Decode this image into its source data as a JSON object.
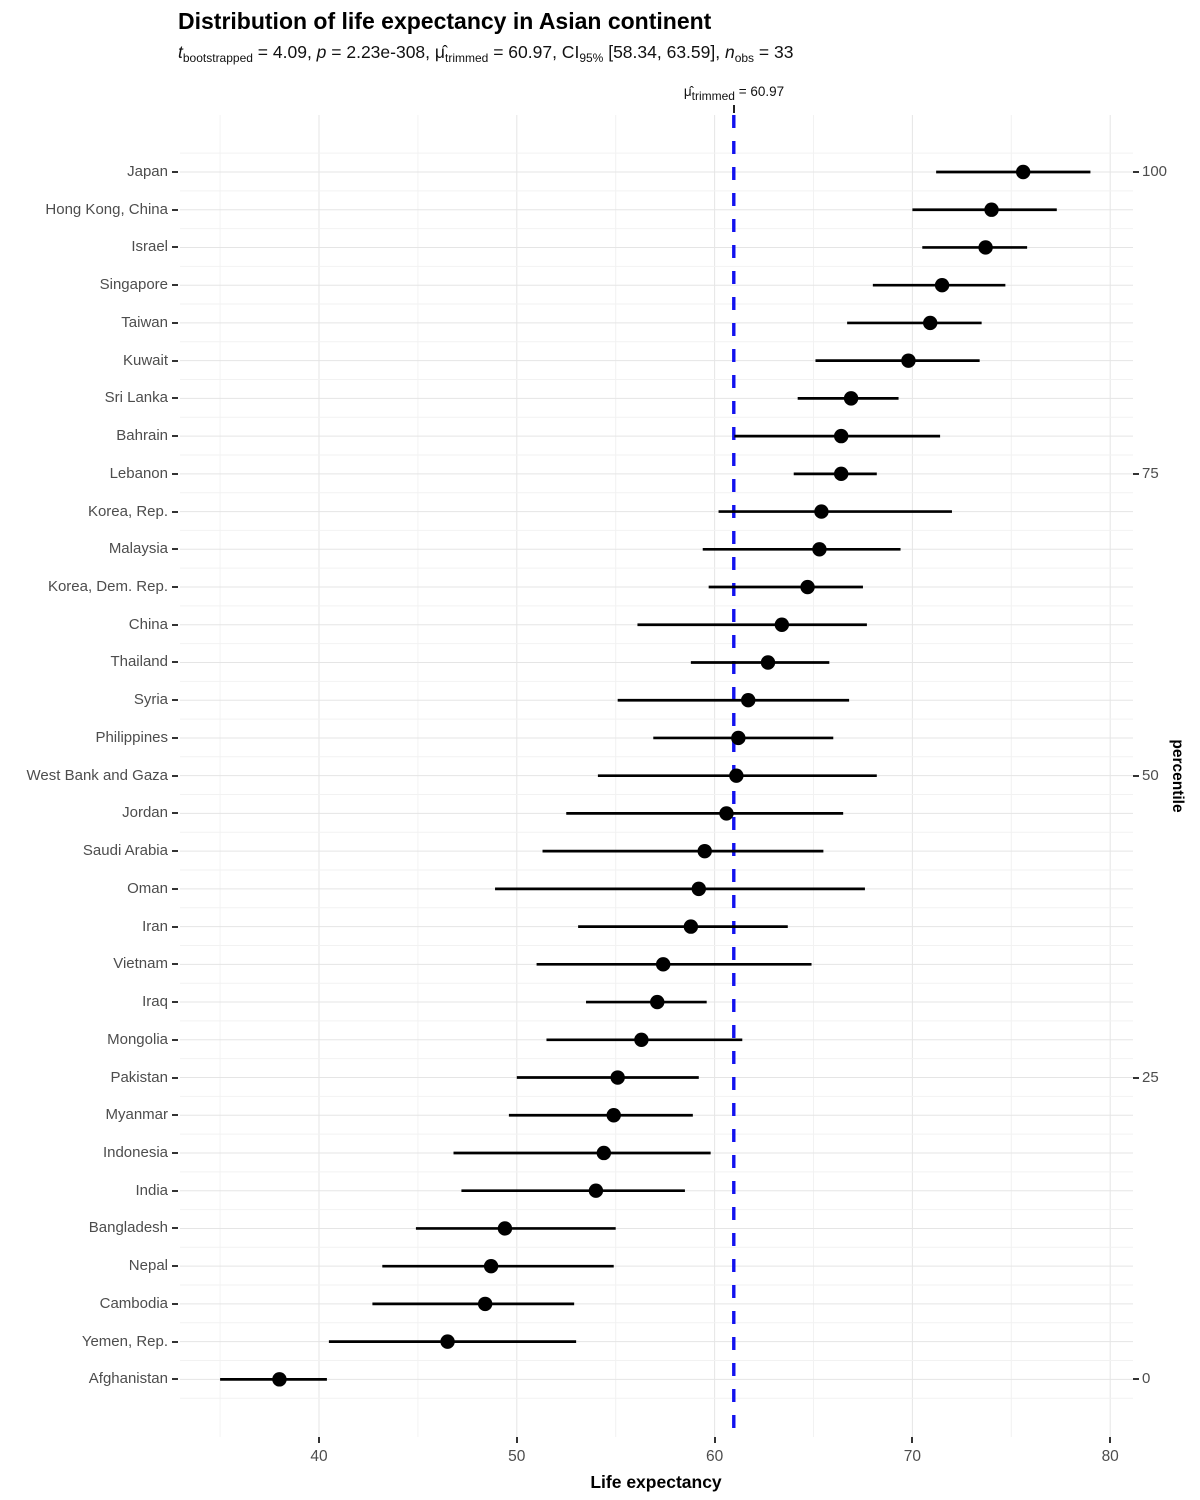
{
  "title": "Distribution of life expectancy in Asian continent",
  "subtitle_segments": [
    {
      "text": "t",
      "italic": true
    },
    {
      "text": "bootstrapped",
      "sub": true
    },
    {
      "text": " = 4.09, "
    },
    {
      "text": "p",
      "italic": true
    },
    {
      "text": " = 2.23e-308, "
    },
    {
      "text": "μ̂"
    },
    {
      "text": "trimmed",
      "sub": true
    },
    {
      "text": " = 60.97, CI"
    },
    {
      "text": "95%",
      "sub": true
    },
    {
      "text": " [58.34, 63.59], "
    },
    {
      "text": "n",
      "italic": true
    },
    {
      "text": "obs",
      "sub": true
    },
    {
      "text": " = 33"
    }
  ],
  "mu_label_segments": [
    {
      "text": "μ̂"
    },
    {
      "text": "trimmed",
      "sub": true
    },
    {
      "text": " = 60.97"
    }
  ],
  "axes": {
    "x_title": "Life expectancy",
    "y2_title": "percentile",
    "x_ticks": [
      40,
      50,
      60,
      70,
      80
    ],
    "y2_ticks": [
      {
        "label": "100",
        "row": 0
      },
      {
        "label": "75",
        "row": 8
      },
      {
        "label": "50",
        "row": 16
      },
      {
        "label": "25",
        "row": 24
      },
      {
        "label": "0",
        "row": 32
      }
    ]
  },
  "colors": {
    "reference_line": "#1212ee",
    "point": "#000000",
    "ci_line": "#000000",
    "grid_major": "#e5e5e5",
    "grid_minor": "#f2f2f2",
    "axis_text": "#4d4d4d"
  },
  "chart_data": {
    "type": "scatter",
    "subtype": "dot-plot-with-ci",
    "title": "Distribution of life expectancy in Asian continent",
    "xlabel": "Life expectancy",
    "ylabel_right": "percentile",
    "xlim": [
      33,
      81.2
    ],
    "x_ticks": [
      40,
      50,
      60,
      70,
      80
    ],
    "percentile_ticks": [
      0,
      25,
      50,
      75,
      100
    ],
    "grid": true,
    "reference_line": {
      "value": 60.97,
      "style": "dashed",
      "color": "#1212ee",
      "label": "μ̂ trimmed = 60.97"
    },
    "stats": {
      "t_bootstrapped": 4.09,
      "p": "2.23e-308",
      "mu_trimmed": 60.97,
      "ci_95": [
        58.34,
        63.59
      ],
      "n_obs": 33
    },
    "categories": [
      "Japan",
      "Hong Kong, China",
      "Israel",
      "Singapore",
      "Taiwan",
      "Kuwait",
      "Sri Lanka",
      "Bahrain",
      "Lebanon",
      "Korea, Rep.",
      "Malaysia",
      "Korea, Dem. Rep.",
      "China",
      "Thailand",
      "Syria",
      "Philippines",
      "West Bank and Gaza",
      "Jordan",
      "Saudi Arabia",
      "Oman",
      "Iran",
      "Vietnam",
      "Iraq",
      "Mongolia",
      "Pakistan",
      "Myanmar",
      "Indonesia",
      "India",
      "Bangladesh",
      "Nepal",
      "Cambodia",
      "Yemen, Rep.",
      "Afghanistan"
    ],
    "values": [
      75.6,
      74.0,
      73.7,
      71.5,
      70.9,
      69.8,
      66.9,
      66.4,
      66.4,
      65.4,
      65.3,
      64.7,
      63.4,
      62.7,
      61.7,
      61.2,
      61.1,
      60.6,
      59.5,
      59.2,
      58.8,
      57.4,
      57.1,
      56.3,
      55.1,
      54.9,
      54.4,
      54.0,
      49.4,
      48.7,
      48.4,
      46.5,
      38.0
    ],
    "ci_low": [
      71.2,
      70.0,
      70.5,
      68.0,
      66.7,
      65.1,
      64.2,
      61.0,
      64.0,
      60.2,
      59.4,
      59.7,
      56.1,
      58.8,
      55.1,
      56.9,
      54.1,
      52.5,
      51.3,
      48.9,
      53.1,
      51.0,
      53.5,
      51.5,
      50.0,
      49.6,
      46.8,
      47.2,
      44.9,
      43.2,
      42.7,
      40.5,
      35.0
    ],
    "ci_high": [
      79.0,
      77.3,
      75.8,
      74.7,
      73.5,
      73.4,
      69.3,
      71.4,
      68.2,
      72.0,
      69.4,
      67.5,
      67.7,
      65.8,
      66.8,
      66.0,
      68.2,
      66.5,
      65.5,
      67.6,
      63.7,
      64.9,
      59.6,
      61.4,
      59.2,
      58.9,
      59.8,
      58.5,
      55.0,
      54.9,
      52.9,
      53.0,
      40.4
    ]
  }
}
